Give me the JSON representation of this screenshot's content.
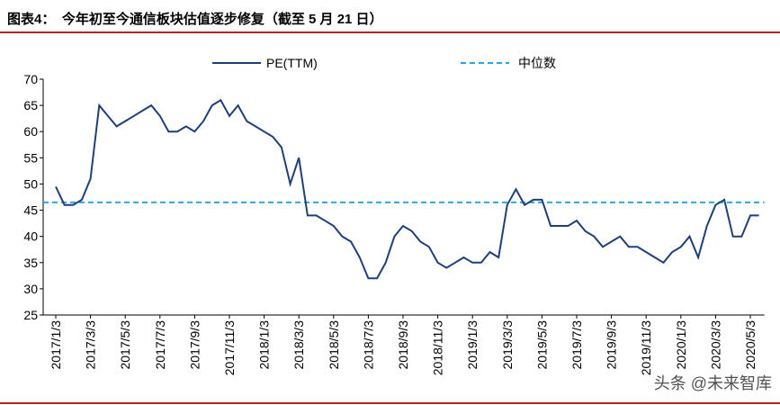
{
  "chart_data": {
    "type": "line",
    "title": "图表4：　今年初至今通信板块估值逐步修复（截至 5 月 21 日）",
    "watermark": "头条 @未来智库",
    "categories": [
      "2017/1/3",
      null,
      null,
      null,
      "2017/3/3",
      null,
      null,
      null,
      "2017/5/3",
      null,
      null,
      null,
      "2017/7/3",
      null,
      null,
      null,
      "2017/9/3",
      null,
      null,
      null,
      "2017/11/3",
      null,
      null,
      null,
      "2018/1/3",
      null,
      null,
      null,
      "2018/3/3",
      null,
      null,
      null,
      "2018/5/3",
      null,
      null,
      null,
      "2018/7/3",
      null,
      null,
      null,
      "2018/9/3",
      null,
      null,
      null,
      "2018/11/3",
      null,
      null,
      null,
      "2019/1/3",
      null,
      null,
      null,
      "2019/3/3",
      null,
      null,
      null,
      "2019/5/3",
      null,
      null,
      null,
      "2019/7/3",
      null,
      null,
      null,
      "2019/9/3",
      null,
      null,
      null,
      "2019/11/3",
      null,
      null,
      null,
      "2020/1/3",
      null,
      null,
      null,
      "2020/3/3",
      null,
      null,
      null,
      "2020/5/3",
      null
    ],
    "series": [
      {
        "name": "PE(TTM)",
        "color": "#1f3f7a",
        "values": [
          49.5,
          46,
          46,
          47,
          51,
          65,
          63,
          61,
          62,
          63,
          64,
          65,
          63,
          60,
          60,
          61,
          60,
          62,
          65,
          66,
          63,
          65,
          62,
          61,
          60,
          59,
          57,
          50,
          55,
          44,
          44,
          43,
          42,
          40,
          39,
          36,
          32,
          32,
          35,
          40,
          42,
          41,
          39,
          38,
          35,
          34,
          35,
          36,
          35,
          35,
          37,
          36,
          46,
          49,
          46,
          47,
          47,
          42,
          42,
          42,
          43,
          41,
          40,
          38,
          39,
          40,
          38,
          38,
          37,
          36,
          35,
          37,
          38,
          40,
          36,
          42,
          46,
          47,
          40,
          40,
          44,
          44
        ]
      }
    ],
    "reference_lines": [
      {
        "name": "中位数",
        "value": 46.5,
        "color": "#29a8e0"
      }
    ],
    "ylim": [
      25,
      70
    ],
    "yticks": [
      25,
      30,
      35,
      40,
      45,
      50,
      55,
      60,
      65,
      70
    ]
  }
}
